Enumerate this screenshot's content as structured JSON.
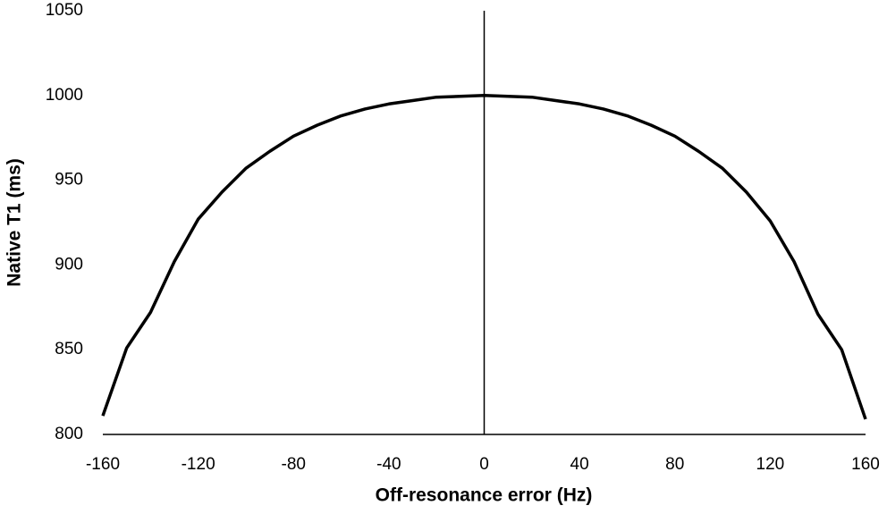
{
  "chart_data": {
    "type": "line",
    "x_label": "Off-resonance error (Hz)",
    "y_label": "Native T1 (ms)",
    "x": [
      -160,
      -150,
      -140,
      -130,
      -120,
      -110,
      -100,
      -90,
      -80,
      -70,
      -60,
      -50,
      -40,
      -30,
      -20,
      -10,
      0,
      10,
      20,
      30,
      40,
      50,
      60,
      70,
      80,
      90,
      100,
      110,
      120,
      130,
      140,
      150,
      160
    ],
    "series": [
      {
        "color": "#000000",
        "values": [
          811,
          851,
          872,
          902,
          927,
          943,
          957,
          967,
          976,
          982.5,
          988,
          992,
          995,
          997,
          999,
          999.5,
          1000,
          999.5,
          999,
          997,
          995,
          992,
          988,
          982.5,
          976,
          967,
          957,
          943,
          926,
          902,
          871,
          850,
          809
        ]
      }
    ],
    "xlim": [
      -160,
      160
    ],
    "xticks": [
      -160,
      -120,
      -80,
      -40,
      0,
      40,
      80,
      120,
      160
    ],
    "ylim": [
      800,
      1050
    ],
    "yticks": [
      800,
      850,
      900,
      950,
      1000,
      1050
    ],
    "grid": false
  }
}
